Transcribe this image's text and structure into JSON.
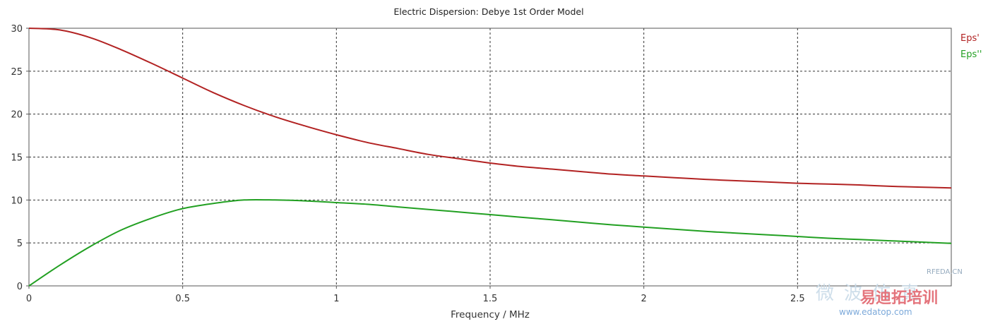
{
  "chart_data": {
    "type": "line",
    "title": "Electric Dispersion: Debye 1st Order Model",
    "xlabel": "Frequency / MHz",
    "ylabel": "",
    "xlim": [
      0,
      3
    ],
    "ylim": [
      0,
      30
    ],
    "xticks": [
      0,
      0.5,
      1,
      1.5,
      2,
      2.5
    ],
    "xtick_labels": [
      "0",
      "0.5",
      "1",
      "1.5",
      "2",
      "2.5"
    ],
    "yticks": [
      0,
      5,
      10,
      15,
      20,
      25,
      30
    ],
    "ytick_labels": [
      "0",
      "5",
      "10",
      "15",
      "20",
      "25",
      "30"
    ],
    "grid": true,
    "legend_position": "right",
    "x": [
      0,
      0.1,
      0.2,
      0.3,
      0.4,
      0.5,
      0.6,
      0.7,
      0.8,
      0.9,
      1.0,
      1.1,
      1.2,
      1.3,
      1.4,
      1.5,
      1.6,
      1.7,
      1.8,
      1.9,
      2.0,
      2.1,
      2.2,
      2.3,
      2.4,
      2.5,
      2.6,
      2.7,
      2.8,
      2.9,
      3.0
    ],
    "series": [
      {
        "name": "Eps'",
        "color": "#b22222",
        "values": [
          30.0,
          29.8,
          28.9,
          27.5,
          25.9,
          24.2,
          22.5,
          21.0,
          19.7,
          18.6,
          17.6,
          16.7,
          16.0,
          15.3,
          14.8,
          14.3,
          13.9,
          13.6,
          13.3,
          13.0,
          12.8,
          12.6,
          12.4,
          12.25,
          12.1,
          11.95,
          11.85,
          11.75,
          11.6,
          11.5,
          11.4
        ]
      },
      {
        "name": "Eps''",
        "color": "#22a022",
        "values": [
          0.0,
          2.4,
          4.6,
          6.5,
          7.9,
          9.0,
          9.6,
          10.0,
          10.0,
          9.9,
          9.7,
          9.5,
          9.2,
          8.9,
          8.6,
          8.3,
          8.0,
          7.7,
          7.4,
          7.1,
          6.85,
          6.6,
          6.35,
          6.15,
          5.95,
          5.75,
          5.55,
          5.4,
          5.25,
          5.1,
          4.95
        ]
      }
    ]
  },
  "watermark": {
    "site1": "RFEDA.CN",
    "brand": "易迪拓培训",
    "site2": "www.edatop.com",
    "faded": "微波仿真"
  }
}
